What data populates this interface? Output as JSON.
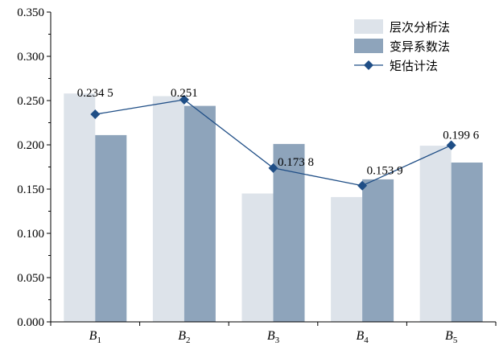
{
  "chart_data": {
    "type": "bar",
    "categories": [
      {
        "main": "B",
        "sub": "1"
      },
      {
        "main": "B",
        "sub": "2"
      },
      {
        "main": "B",
        "sub": "3"
      },
      {
        "main": "B",
        "sub": "4"
      },
      {
        "main": "B",
        "sub": "5"
      }
    ],
    "ylim": [
      0,
      0.35
    ],
    "yticks": [
      "0.000",
      "0.050",
      "0.100",
      "0.150",
      "0.200",
      "0.250",
      "0.300",
      "0.350"
    ],
    "grid": false,
    "legend_position": "top-right",
    "series": [
      {
        "name": "层次分析法",
        "kind": "bar",
        "color": "#dde3ea",
        "values": [
          0.258,
          0.255,
          0.145,
          0.141,
          0.199
        ]
      },
      {
        "name": "变异系数法",
        "kind": "bar",
        "color": "#8ea4bb",
        "values": [
          0.211,
          0.244,
          0.201,
          0.161,
          0.18
        ]
      },
      {
        "name": "矩估计法",
        "kind": "line",
        "marker": "diamond",
        "color": "#1f4e86",
        "values": [
          0.2345,
          0.251,
          0.1738,
          0.1539,
          0.1996
        ],
        "labels": [
          "0.234 5",
          "0.251",
          "0.173 8",
          "0.153 9",
          "0.199 6"
        ]
      }
    ]
  }
}
